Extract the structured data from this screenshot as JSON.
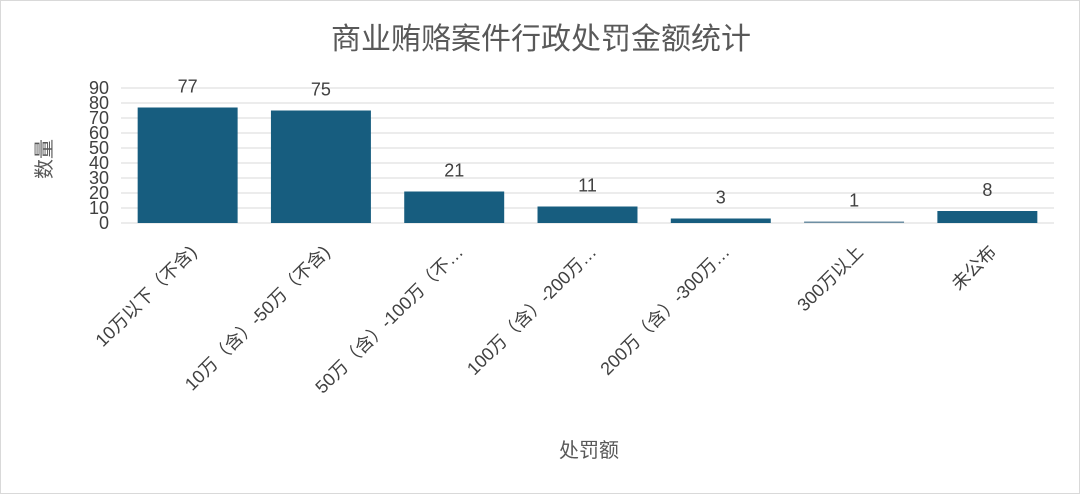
{
  "chart_data": {
    "type": "bar",
    "title": "商业贿赂案件行政处罚金额统计",
    "xlabel": "处罚额",
    "ylabel": "数量",
    "categories": [
      "10万以下（不含)",
      "10万（含）-50万（不含)",
      "50万（含）-100万（不…",
      "100万（含）-200万…",
      "200万（含）-300万…",
      "300万以上",
      "未公布"
    ],
    "values": [
      77,
      75,
      21,
      11,
      3,
      1,
      8
    ],
    "ylim": [
      0,
      90
    ],
    "yticks": [
      0,
      10,
      20,
      30,
      40,
      50,
      60,
      70,
      80,
      90
    ],
    "grid": true,
    "data_labels": true,
    "colors": {
      "bar": "#175d7f",
      "bar_light": "#6e8fa3"
    }
  }
}
